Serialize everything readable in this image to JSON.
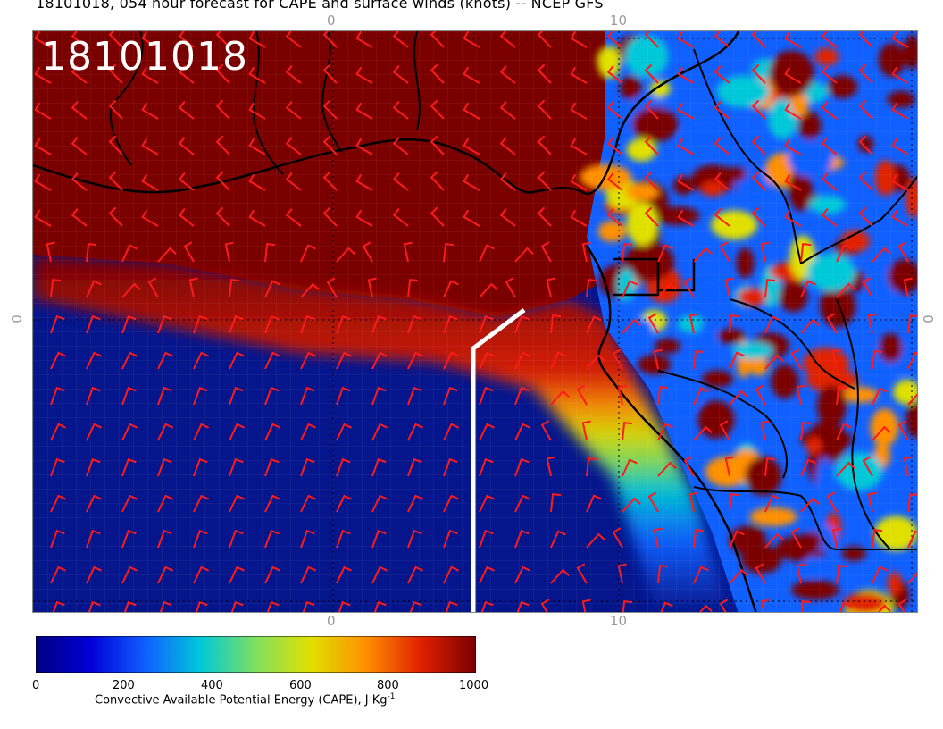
{
  "header": {
    "title": "18101018, 054 hour forecast for CAPE and surface winds (knots) -- NCEP GFS",
    "date_stamp": "18101018"
  },
  "axes": {
    "top_ticks": [
      "0",
      "10"
    ],
    "bottom_ticks": [
      "0",
      "10"
    ],
    "left_tick": "0",
    "right_tick": "0"
  },
  "colorbar": {
    "ticks": [
      "0",
      "200",
      "400",
      "600",
      "800",
      "1000"
    ],
    "caption_main": "Convective Available Potential Energy (CAPE), J Kg",
    "caption_sup": "-1",
    "colors": [
      "#000080",
      "#0000d8",
      "#1060ff",
      "#00c8d8",
      "#80e060",
      "#e0e000",
      "#ff9000",
      "#e02000",
      "#7a0000"
    ]
  },
  "map_colors": {
    "high_cape": "#7a0000",
    "low_cape": "#05168c",
    "barbs": "#ff1a1a",
    "coast": "#000000",
    "track": "#ffffff"
  }
}
